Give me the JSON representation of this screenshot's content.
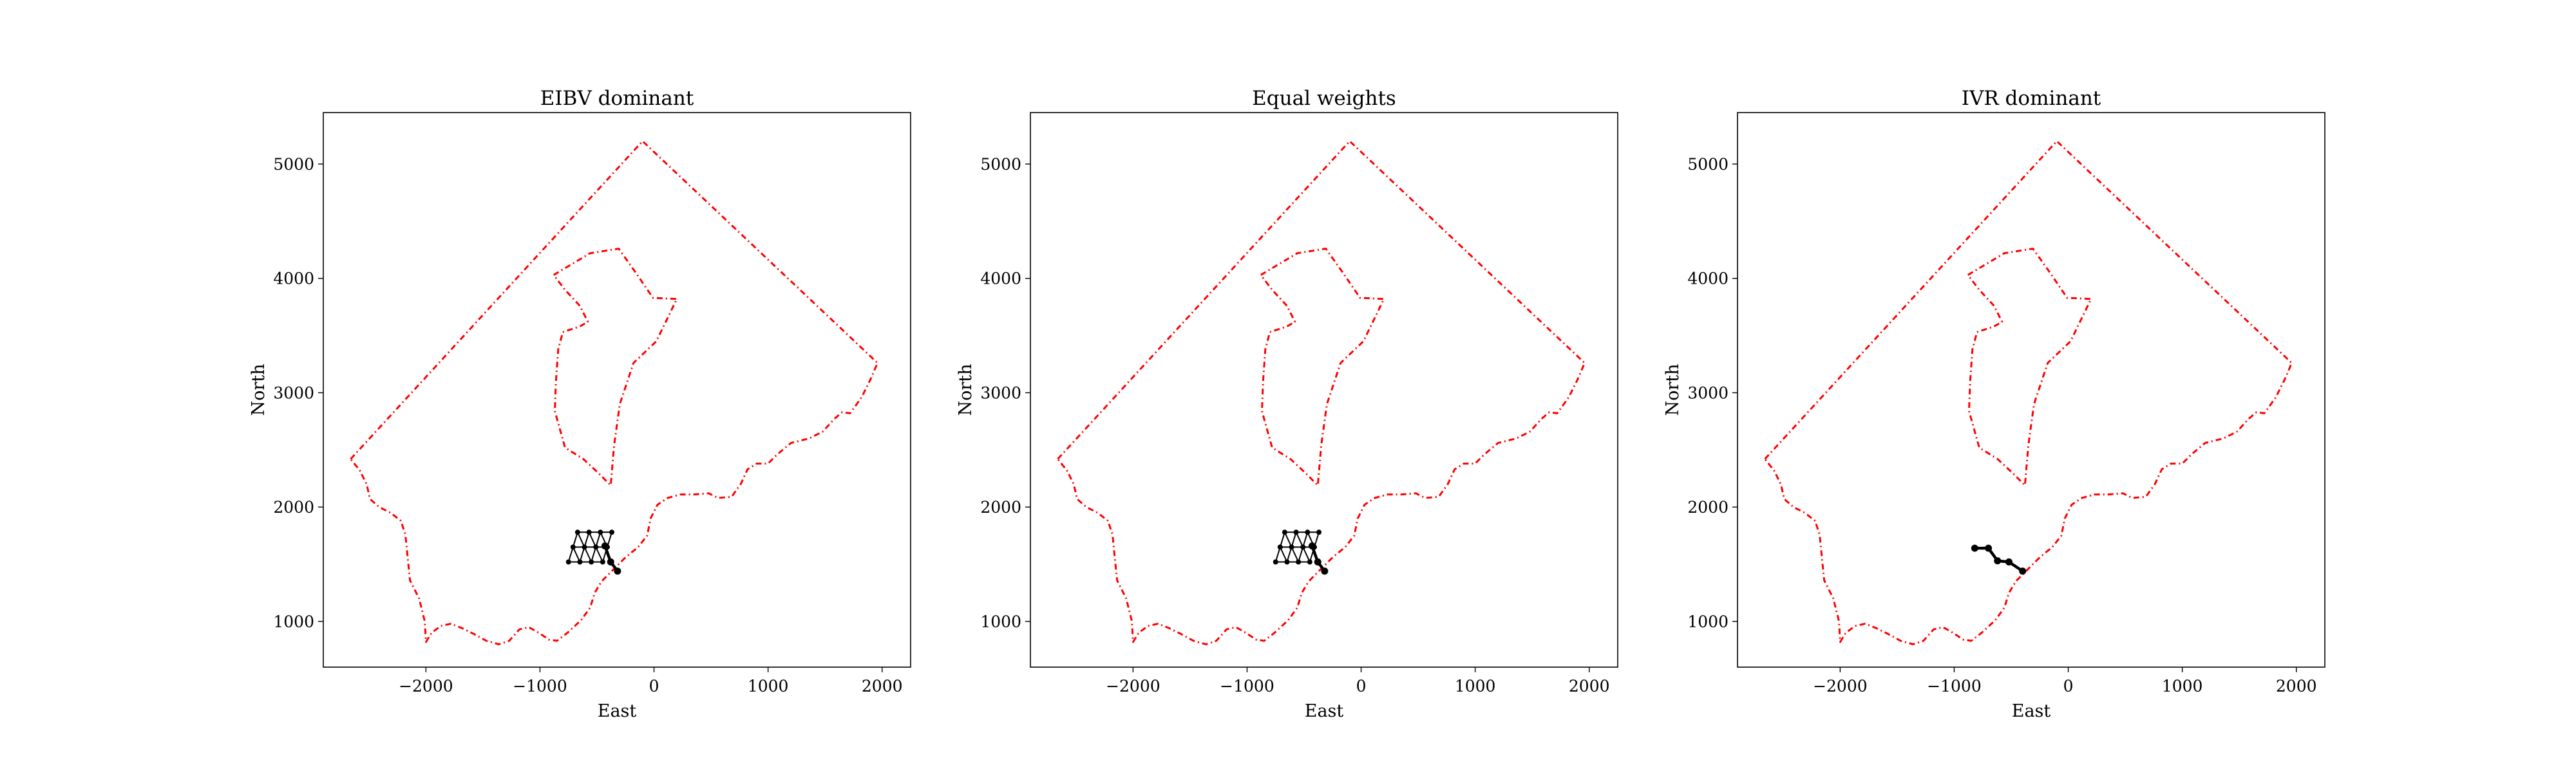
{
  "chart_data": [
    {
      "type": "line",
      "title": "EIBV dominant",
      "xlabel": "East",
      "ylabel": "North",
      "xlim": [
        -2900,
        2250
      ],
      "ylim": [
        600,
        5450
      ],
      "xticks": [
        -2000,
        -1000,
        0,
        1000,
        2000
      ],
      "xtick_labels": [
        "−2000",
        "−1000",
        "0",
        "1000",
        "2000"
      ],
      "yticks": [
        1000,
        2000,
        3000,
        4000,
        5000
      ],
      "ytick_labels": [
        "1000",
        "2000",
        "3000",
        "4000",
        "5000"
      ],
      "grid": false,
      "colors": {
        "boundary": "#ff0000",
        "path": "#000000"
      },
      "graph_nodes": [
        [
          -750,
          1520
        ],
        [
          -650,
          1520
        ],
        [
          -550,
          1520
        ],
        [
          -450,
          1520
        ],
        [
          -710,
          1650
        ],
        [
          -610,
          1650
        ],
        [
          -510,
          1650
        ],
        [
          -410,
          1650
        ],
        [
          -670,
          1780
        ],
        [
          -570,
          1780
        ],
        [
          -470,
          1780
        ],
        [
          -370,
          1780
        ]
      ],
      "trajectory": [
        [
          -430,
          1660
        ],
        [
          -380,
          1520
        ],
        [
          -320,
          1440
        ]
      ]
    },
    {
      "type": "line",
      "title": "Equal weights",
      "xlabel": "East",
      "ylabel": "North",
      "xlim": [
        -2900,
        2250
      ],
      "ylim": [
        600,
        5450
      ],
      "xticks": [
        -2000,
        -1000,
        0,
        1000,
        2000
      ],
      "xtick_labels": [
        "−2000",
        "−1000",
        "0",
        "1000",
        "2000"
      ],
      "yticks": [
        1000,
        2000,
        3000,
        4000,
        5000
      ],
      "ytick_labels": [
        "1000",
        "2000",
        "3000",
        "4000",
        "5000"
      ],
      "grid": false,
      "colors": {
        "boundary": "#ff0000",
        "path": "#000000"
      },
      "graph_nodes": [
        [
          -750,
          1520
        ],
        [
          -650,
          1520
        ],
        [
          -550,
          1520
        ],
        [
          -450,
          1520
        ],
        [
          -710,
          1650
        ],
        [
          -610,
          1650
        ],
        [
          -510,
          1650
        ],
        [
          -410,
          1650
        ],
        [
          -670,
          1780
        ],
        [
          -570,
          1780
        ],
        [
          -470,
          1780
        ],
        [
          -370,
          1780
        ]
      ],
      "trajectory": [
        [
          -430,
          1660
        ],
        [
          -380,
          1520
        ],
        [
          -320,
          1440
        ]
      ]
    },
    {
      "type": "line",
      "title": "IVR dominant",
      "xlabel": "East",
      "ylabel": "North",
      "xlim": [
        -2900,
        2250
      ],
      "ylim": [
        600,
        5450
      ],
      "xticks": [
        -2000,
        -1000,
        0,
        1000,
        2000
      ],
      "xtick_labels": [
        "−2000",
        "−1000",
        "0",
        "1000",
        "2000"
      ],
      "yticks": [
        1000,
        2000,
        3000,
        4000,
        5000
      ],
      "ytick_labels": [
        "1000",
        "2000",
        "3000",
        "4000",
        "5000"
      ],
      "grid": false,
      "colors": {
        "boundary": "#ff0000",
        "path": "#000000"
      },
      "graph_nodes": [],
      "trajectory": [
        [
          -820,
          1640
        ],
        [
          -700,
          1640
        ],
        [
          -620,
          1530
        ],
        [
          -520,
          1520
        ],
        [
          -400,
          1440
        ]
      ]
    }
  ],
  "outer_boundary": [
    [
      -2660,
      2420
    ],
    [
      -100,
      5200
    ],
    [
      1960,
      3260
    ],
    [
      1900,
      3120
    ],
    [
      1820,
      2960
    ],
    [
      1720,
      2820
    ],
    [
      1650,
      2830
    ],
    [
      1580,
      2770
    ],
    [
      1480,
      2660
    ],
    [
      1360,
      2600
    ],
    [
      1200,
      2560
    ],
    [
      1080,
      2460
    ],
    [
      1000,
      2380
    ],
    [
      900,
      2380
    ],
    [
      820,
      2330
    ],
    [
      760,
      2200
    ],
    [
      680,
      2090
    ],
    [
      560,
      2080
    ],
    [
      480,
      2120
    ],
    [
      350,
      2110
    ],
    [
      230,
      2110
    ],
    [
      120,
      2080
    ],
    [
      30,
      2020
    ],
    [
      -30,
      1900
    ],
    [
      -60,
      1750
    ],
    [
      -140,
      1650
    ],
    [
      -250,
      1560
    ],
    [
      -360,
      1450
    ],
    [
      -460,
      1350
    ],
    [
      -520,
      1250
    ],
    [
      -560,
      1120
    ],
    [
      -640,
      1010
    ],
    [
      -760,
      900
    ],
    [
      -850,
      830
    ],
    [
      -920,
      840
    ],
    [
      -1010,
      900
    ],
    [
      -1100,
      950
    ],
    [
      -1180,
      930
    ],
    [
      -1270,
      830
    ],
    [
      -1360,
      800
    ],
    [
      -1470,
      830
    ],
    [
      -1560,
      880
    ],
    [
      -1680,
      940
    ],
    [
      -1780,
      980
    ],
    [
      -1870,
      960
    ],
    [
      -1950,
      900
    ],
    [
      -2000,
      820
    ],
    [
      -2010,
      1000
    ],
    [
      -2060,
      1200
    ],
    [
      -2140,
      1360
    ],
    [
      -2160,
      1560
    ],
    [
      -2180,
      1760
    ],
    [
      -2220,
      1880
    ],
    [
      -2310,
      1950
    ],
    [
      -2410,
      2000
    ],
    [
      -2490,
      2070
    ],
    [
      -2520,
      2200
    ],
    [
      -2580,
      2320
    ],
    [
      -2660,
      2420
    ]
  ],
  "inner_boundary": [
    [
      -880,
      4030
    ],
    [
      -560,
      4220
    ],
    [
      -310,
      4260
    ],
    [
      -160,
      4050
    ],
    [
      -10,
      3830
    ],
    [
      200,
      3820
    ],
    [
      20,
      3450
    ],
    [
      -180,
      3260
    ],
    [
      -300,
      2900
    ],
    [
      -350,
      2540
    ],
    [
      -370,
      2300
    ],
    [
      -380,
      2190
    ],
    [
      -490,
      2300
    ],
    [
      -620,
      2420
    ],
    [
      -780,
      2520
    ],
    [
      -870,
      2840
    ],
    [
      -860,
      3100
    ],
    [
      -840,
      3380
    ],
    [
      -800,
      3530
    ],
    [
      -650,
      3580
    ],
    [
      -580,
      3620
    ],
    [
      -650,
      3760
    ],
    [
      -780,
      3900
    ],
    [
      -880,
      4030
    ]
  ]
}
